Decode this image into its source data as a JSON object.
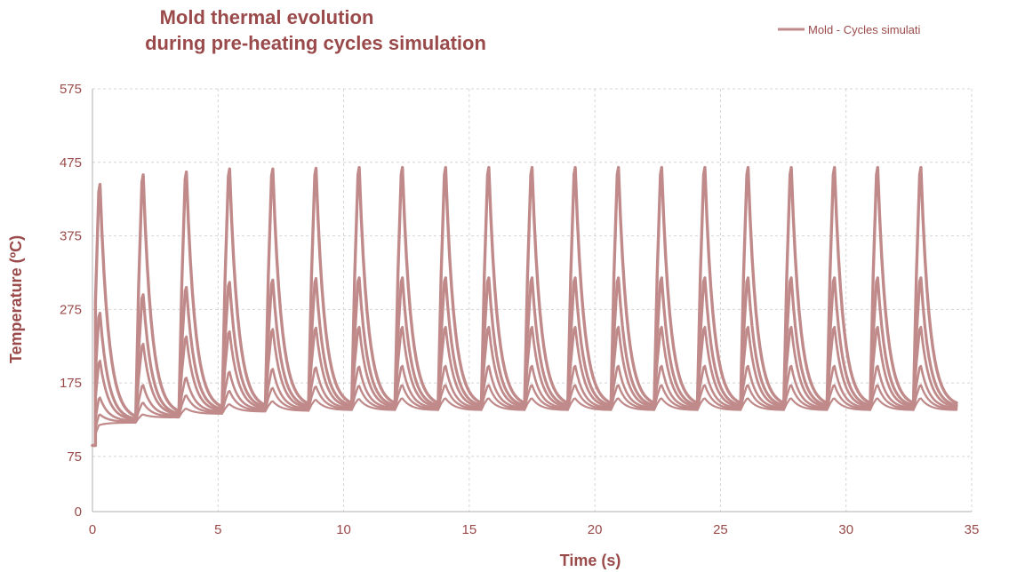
{
  "chart_data": {
    "type": "line",
    "title": [
      "Mold thermal evolution",
      "during pre-heating cycles simulation"
    ],
    "xlabel": "Time (s)",
    "ylabel": "Temperature (ºC)",
    "xlim": [
      0,
      35
    ],
    "ylim": [
      0,
      575
    ],
    "x_ticks": [
      0,
      5,
      10,
      15,
      20,
      25,
      30,
      35
    ],
    "y_ticks": [
      0,
      75,
      175,
      275,
      375,
      475,
      575
    ],
    "grid": true,
    "legend": {
      "position": "top-right",
      "entries": [
        "Mold - Cycles simulati"
      ]
    },
    "color": "#c08a8a",
    "cycle": {
      "first_peak_time": 0.3,
      "period": 1.72,
      "count": 20,
      "end_time": 34.4,
      "start_temperature": 90
    },
    "series": [
      {
        "peaks": [
          445,
          458,
          462,
          466,
          466,
          467,
          468,
          468,
          468,
          468,
          468,
          468,
          468,
          468,
          468,
          468,
          468,
          468,
          468,
          468
        ],
        "troughs": [
          115,
          125,
          132,
          138,
          140,
          142,
          143,
          143,
          143,
          143,
          143,
          143,
          143,
          143,
          143,
          143,
          143,
          143,
          143,
          143,
          143
        ]
      },
      {
        "peaks": [
          270,
          295,
          305,
          312,
          315,
          317,
          318,
          318,
          318,
          318,
          318,
          318,
          318,
          318,
          318,
          318,
          318,
          318,
          318,
          318
        ],
        "troughs": [
          113,
          124,
          131,
          137,
          140,
          141,
          142,
          142,
          142,
          142,
          142,
          142,
          142,
          142,
          142,
          142,
          142,
          142,
          142,
          142,
          142
        ]
      },
      {
        "peaks": [
          205,
          228,
          238,
          245,
          248,
          250,
          251,
          251,
          251,
          251,
          251,
          251,
          251,
          251,
          251,
          251,
          251,
          251,
          251,
          251
        ],
        "troughs": [
          112,
          124,
          131,
          136,
          139,
          140,
          141,
          141,
          141,
          141,
          141,
          141,
          141,
          141,
          141,
          141,
          141,
          141,
          141,
          141,
          141
        ]
      },
      {
        "peaks": [
          155,
          172,
          182,
          190,
          194,
          196,
          197,
          198,
          198,
          198,
          198,
          198,
          198,
          198,
          198,
          198,
          198,
          198,
          198,
          198
        ],
        "troughs": [
          111,
          123,
          130,
          135,
          138,
          139,
          140,
          140,
          140,
          140,
          140,
          140,
          140,
          140,
          140,
          140,
          140,
          140,
          140,
          140,
          140
        ]
      },
      {
        "peaks": [
          132,
          148,
          158,
          164,
          168,
          170,
          171,
          172,
          172,
          172,
          172,
          172,
          172,
          172,
          172,
          172,
          172,
          172,
          172,
          172
        ],
        "troughs": [
          110,
          122,
          129,
          134,
          137,
          138,
          139,
          139,
          139,
          139,
          139,
          139,
          139,
          139,
          139,
          139,
          139,
          139,
          139,
          139,
          139
        ]
      },
      {
        "peaks": [
          118,
          132,
          140,
          146,
          150,
          152,
          153,
          154,
          154,
          154,
          154,
          154,
          154,
          154,
          154,
          154,
          154,
          154,
          154,
          154
        ],
        "troughs": [
          109,
          121,
          128,
          133,
          136,
          137,
          138,
          138,
          138,
          138,
          138,
          138,
          138,
          138,
          138,
          138,
          138,
          138,
          138,
          138,
          138
        ]
      }
    ]
  }
}
